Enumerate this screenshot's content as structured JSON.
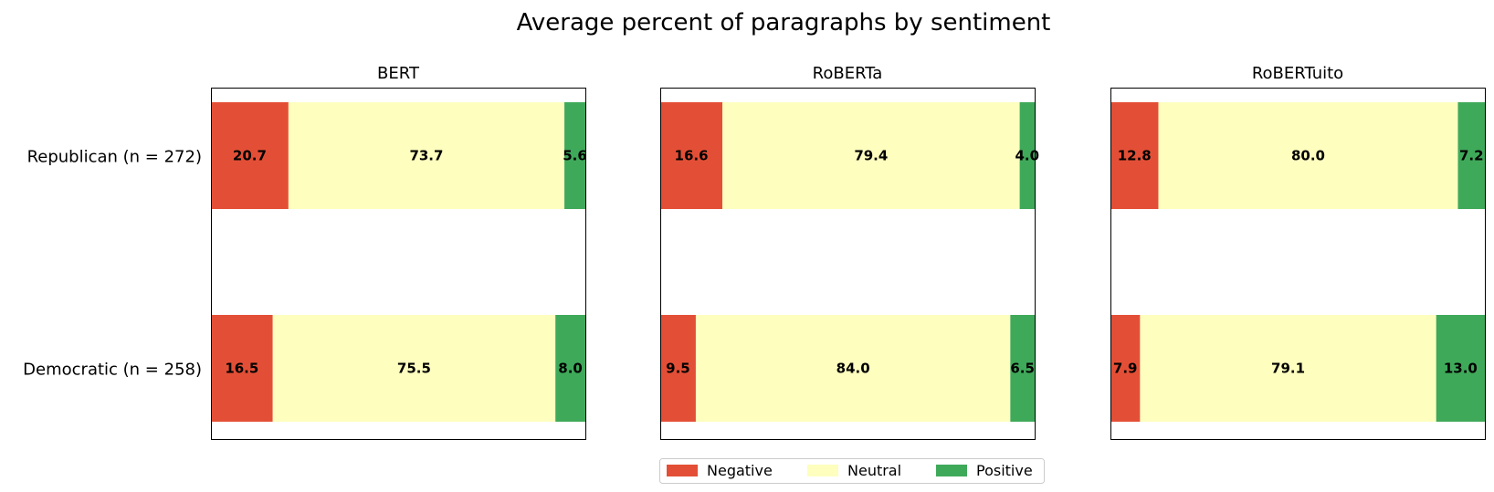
{
  "chart_data": {
    "type": "bar",
    "orientation": "horizontal",
    "stacked": true,
    "title": "Average percent of paragraphs by sentiment",
    "categories": [
      "Republican (n = 272)",
      "Democratic (n = 258)"
    ],
    "xlim": [
      0,
      100
    ],
    "legend": {
      "placement": "bottom-center",
      "entries": [
        {
          "name": "Negative",
          "color": "#e34f36"
        },
        {
          "name": "Neutral",
          "color": "#fefebf"
        },
        {
          "name": "Positive",
          "color": "#3fa95a"
        }
      ]
    },
    "panels": [
      {
        "title": "BERT",
        "series": [
          {
            "name": "Negative",
            "values": [
              20.7,
              16.5
            ],
            "labels": [
              "20.7",
              "16.5"
            ]
          },
          {
            "name": "Neutral",
            "values": [
              73.7,
              75.5
            ],
            "labels": [
              "73.7",
              "75.5"
            ]
          },
          {
            "name": "Positive",
            "values": [
              5.6,
              8.0
            ],
            "labels": [
              "5.6",
              "8.0"
            ]
          }
        ]
      },
      {
        "title": "RoBERTa",
        "series": [
          {
            "name": "Negative",
            "values": [
              16.6,
              9.5
            ],
            "labels": [
              "16.6",
              "9.5"
            ]
          },
          {
            "name": "Neutral",
            "values": [
              79.4,
              84.0
            ],
            "labels": [
              "79.4",
              "84.0"
            ]
          },
          {
            "name": "Positive",
            "values": [
              4.0,
              6.5
            ],
            "labels": [
              "4.0",
              "6.5"
            ]
          }
        ]
      },
      {
        "title": "RoBERTuito",
        "series": [
          {
            "name": "Negative",
            "values": [
              12.8,
              7.9
            ],
            "labels": [
              "12.8",
              "7.9"
            ]
          },
          {
            "name": "Neutral",
            "values": [
              80.0,
              79.1
            ],
            "labels": [
              "80.0",
              "79.1"
            ]
          },
          {
            "name": "Positive",
            "values": [
              7.2,
              13.0
            ],
            "labels": [
              "7.2",
              "13.0"
            ]
          }
        ]
      }
    ]
  }
}
